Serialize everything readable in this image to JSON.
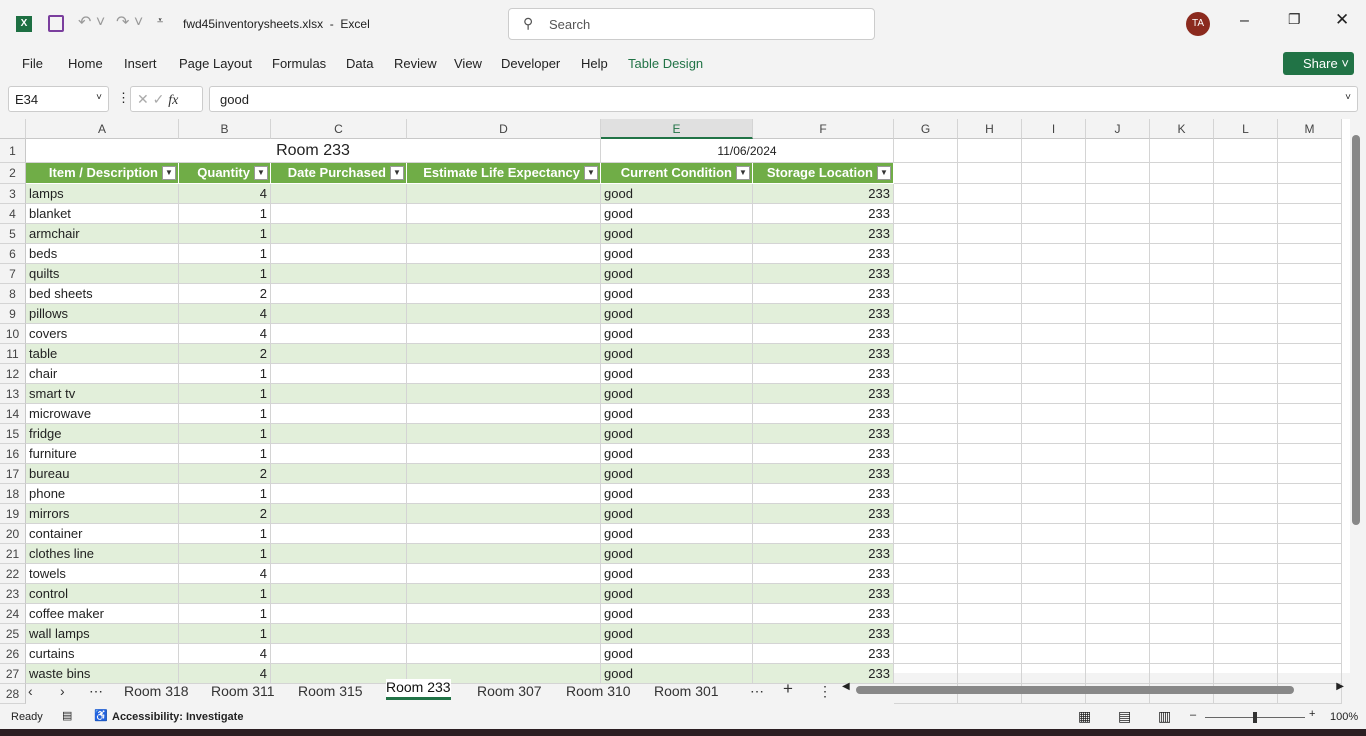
{
  "app": {
    "file_name": "fwd45inventorysheets.xlsx",
    "app_name": "Excel",
    "search_placeholder": "Search",
    "user_initials": "TA",
    "share_label": "Share"
  },
  "menu": [
    "File",
    "Home",
    "Insert",
    "Page Layout",
    "Formulas",
    "Data",
    "Review",
    "View",
    "Developer",
    "Help",
    "Table Design"
  ],
  "formula_bar": {
    "name_box": "E34",
    "value": "good"
  },
  "columns": [
    "A",
    "B",
    "C",
    "D",
    "E",
    "F",
    "G",
    "H",
    "I",
    "J",
    "K",
    "L",
    "M"
  ],
  "sheet": {
    "title": "Room 233",
    "date": "11/06/2024",
    "headers": [
      "Item / Description",
      "Quantity",
      "Date Purchased",
      "Estimate Life Expectancy",
      "Current Condition",
      "Storage Location"
    ],
    "rows": [
      [
        "lamps",
        4,
        "good",
        233
      ],
      [
        "blanket",
        1,
        "good",
        233
      ],
      [
        "armchair",
        1,
        "good",
        233
      ],
      [
        "beds",
        1,
        "good",
        233
      ],
      [
        "quilts",
        1,
        "good",
        233
      ],
      [
        "bed sheets",
        2,
        "good",
        233
      ],
      [
        "pillows",
        4,
        "good",
        233
      ],
      [
        "covers",
        4,
        "good",
        233
      ],
      [
        "table",
        2,
        "good",
        233
      ],
      [
        "chair",
        1,
        "good",
        233
      ],
      [
        "smart tv",
        1,
        "good",
        233
      ],
      [
        "microwave",
        1,
        "good",
        233
      ],
      [
        "fridge",
        1,
        "good",
        233
      ],
      [
        "furniture",
        1,
        "good",
        233
      ],
      [
        "bureau",
        2,
        "good",
        233
      ],
      [
        "phone",
        1,
        "good",
        233
      ],
      [
        "mirrors",
        2,
        "good",
        233
      ],
      [
        "container",
        1,
        "good",
        233
      ],
      [
        "clothes line",
        1,
        "good",
        233
      ],
      [
        "towels",
        4,
        "good",
        233
      ],
      [
        "control",
        1,
        "good",
        233
      ],
      [
        "coffee maker",
        1,
        "good",
        233
      ],
      [
        "wall lamps",
        1,
        "good",
        233
      ],
      [
        "curtains",
        4,
        "good",
        233
      ],
      [
        "waste bins",
        4,
        "good",
        233
      ]
    ]
  },
  "tabs": [
    "Room 318",
    "Room 311",
    "Room 315",
    "Room 233",
    "Room 307",
    "Room 310",
    "Room 301"
  ],
  "active_tab": "Room 233",
  "status": {
    "ready": "Ready",
    "accessibility": "Accessibility: Investigate",
    "zoom": "100%"
  },
  "colors": {
    "accent": "#217346",
    "header_fill": "#70ad47",
    "band_fill": "#e2efda"
  }
}
